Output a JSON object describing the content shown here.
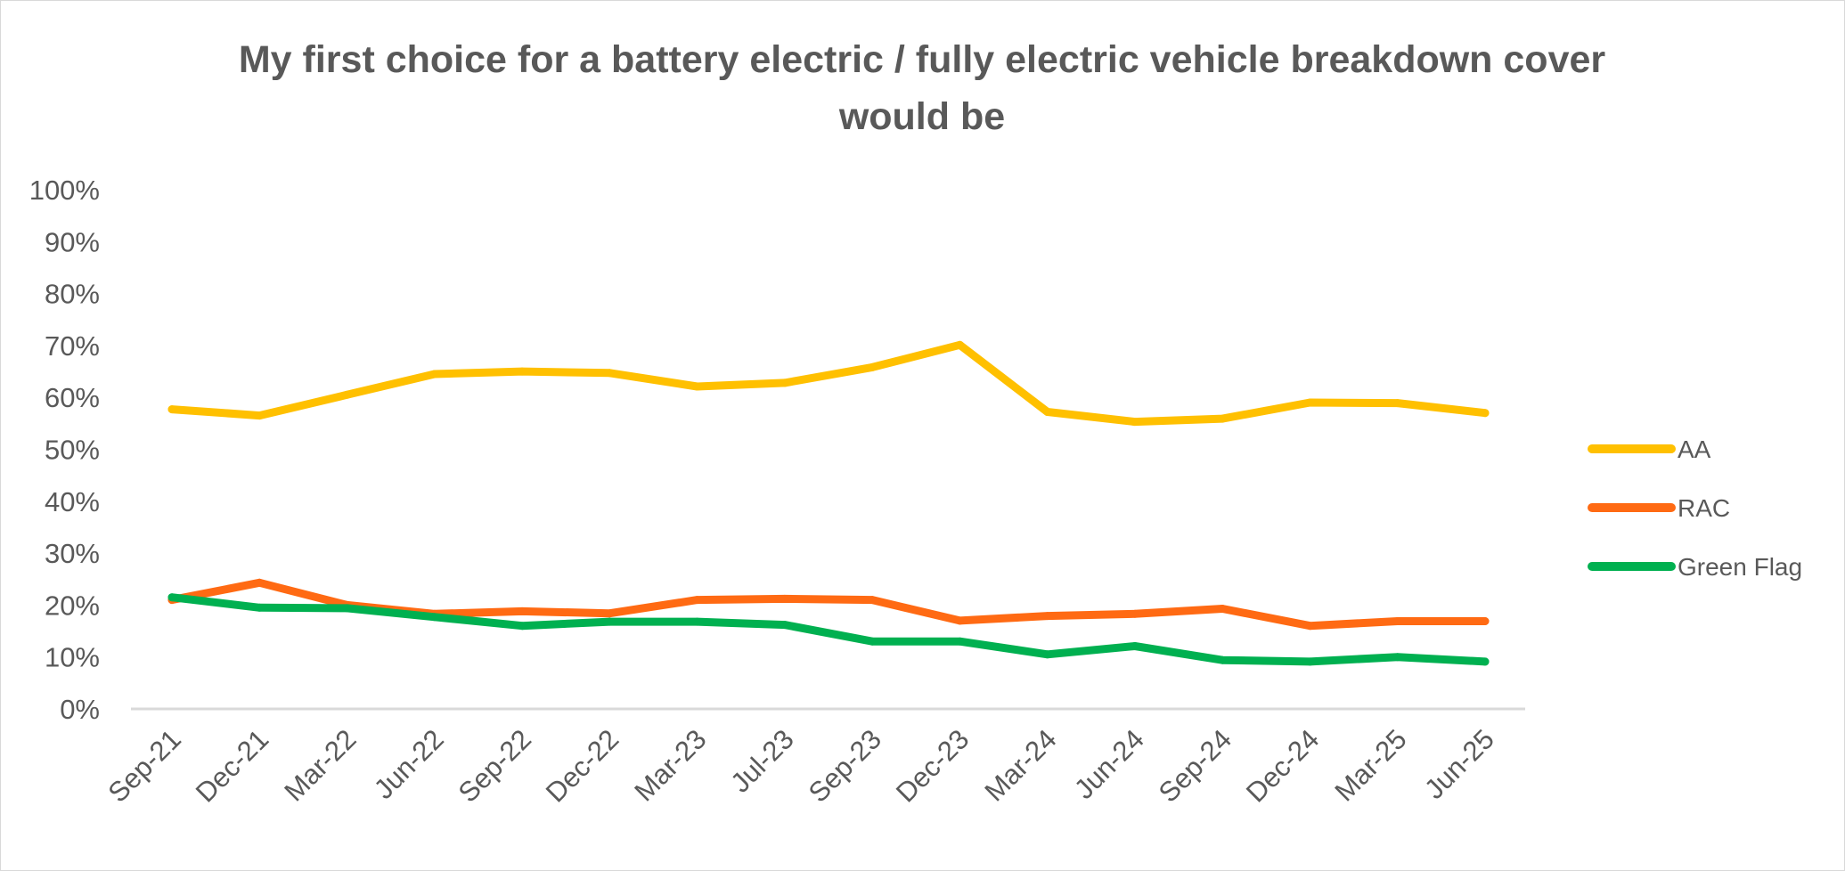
{
  "chart_data": {
    "type": "line",
    "title_lines": [
      "My first choice for a battery electric / fully electric vehicle breakdown cover",
      "would be"
    ],
    "categories": [
      "Sep-21",
      "Dec-21",
      "Mar-22",
      "Jun-22",
      "Sep-22",
      "Dec-22",
      "Mar-23",
      "Jul-23",
      "Sep-23",
      "Dec-23",
      "Mar-24",
      "Jun-24",
      "Sep-24",
      "Dec-24",
      "Mar-25",
      "Jun-25"
    ],
    "series": [
      {
        "name": "AA",
        "color": "#ffc000",
        "values": [
          0.577,
          0.565,
          0.605,
          0.645,
          0.65,
          0.647,
          0.621,
          0.628,
          0.658,
          0.701,
          0.572,
          0.553,
          0.559,
          0.59,
          0.589,
          0.57
        ]
      },
      {
        "name": "RAC",
        "color": "#ff6a13",
        "values": [
          0.21,
          0.243,
          0.2,
          0.183,
          0.188,
          0.184,
          0.21,
          0.212,
          0.21,
          0.17,
          0.179,
          0.183,
          0.193,
          0.16,
          0.169,
          0.169
        ]
      },
      {
        "name": "Green Flag",
        "color": "#00b050",
        "values": [
          0.215,
          0.195,
          0.194,
          0.177,
          0.16,
          0.168,
          0.168,
          0.162,
          0.13,
          0.13,
          0.105,
          0.121,
          0.094,
          0.091,
          0.1,
          0.091
        ]
      }
    ],
    "y_ticks": [
      "0%",
      "10%",
      "20%",
      "30%",
      "40%",
      "50%",
      "60%",
      "70%",
      "80%",
      "90%",
      "100%"
    ],
    "ylim": [
      0,
      1
    ],
    "grid": false,
    "legend_position": "right",
    "axis_color": "#d9d9d9"
  }
}
